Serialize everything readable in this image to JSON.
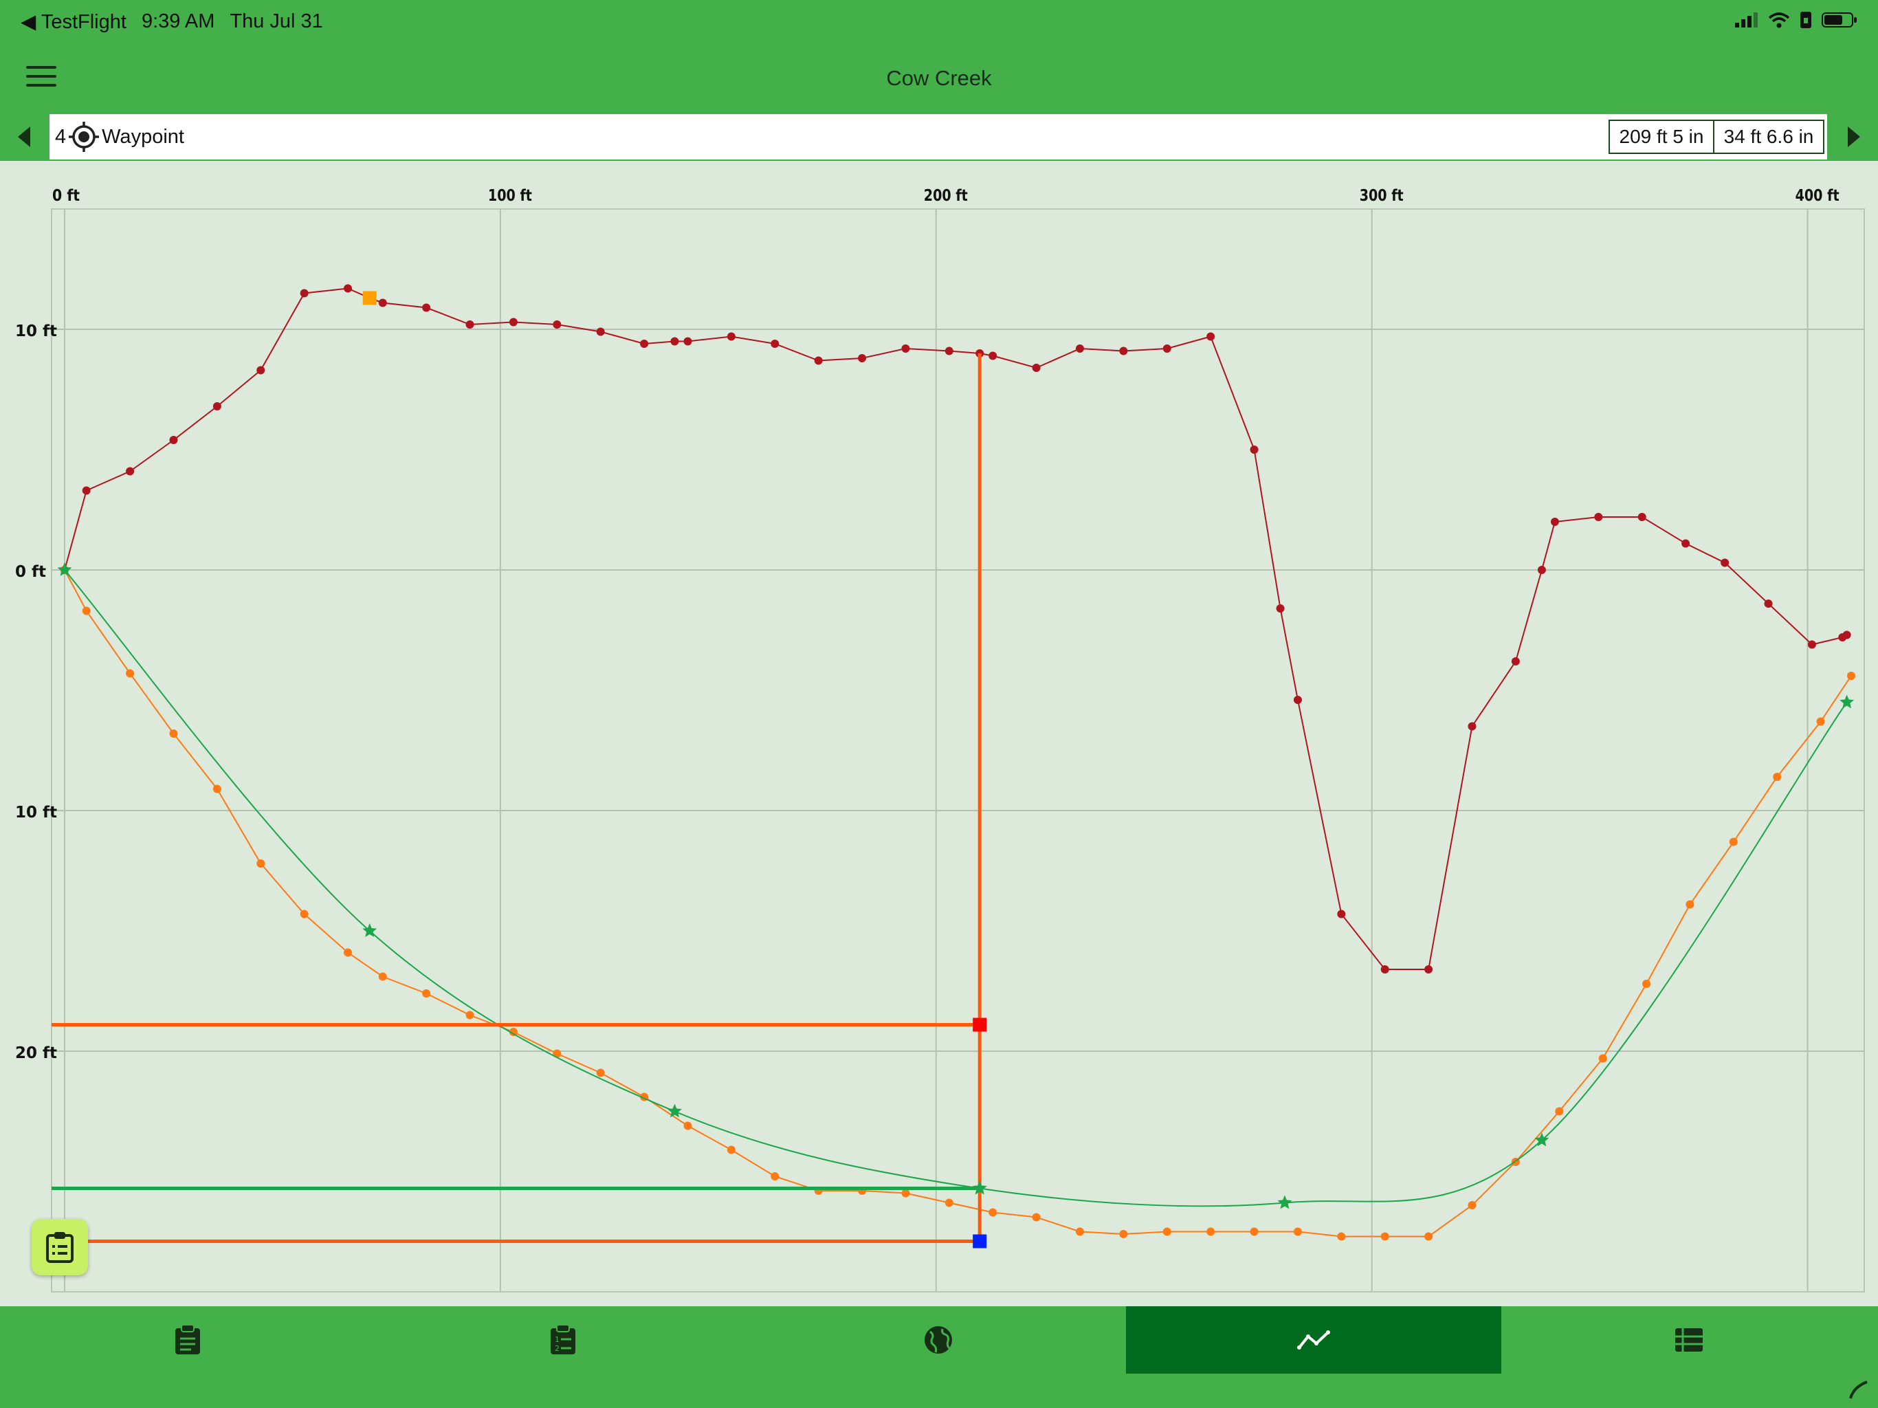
{
  "status_bar": {
    "back_app": "TestFlight",
    "time": "9:39 AM",
    "date": "Thu Jul 31"
  },
  "header": {
    "title": "Cow Creek",
    "menu_icon": "hamburger-menu-icon"
  },
  "waypoint_bar": {
    "number": "4",
    "label": "Waypoint",
    "distance": "209 ft 5 in",
    "depth": "34 ft 6.6 in"
  },
  "tabs": [
    {
      "name": "clipboard",
      "icon": "clipboard-icon",
      "active": false
    },
    {
      "name": "numbered-list",
      "icon": "numbered-clipboard-icon",
      "active": false
    },
    {
      "name": "map",
      "icon": "globe-icon",
      "active": false
    },
    {
      "name": "profile",
      "icon": "line-chart-icon",
      "active": true
    },
    {
      "name": "table",
      "icon": "table-list-icon",
      "active": false
    }
  ],
  "colors": {
    "green": "#43b04a",
    "active_tab": "#006b1e",
    "plot_bg": "#dde9da",
    "ground": "#b0151f",
    "water": "#ff7a14",
    "fit": "#1aa64a",
    "cursor": "#ff5a0a"
  },
  "chart_data": {
    "type": "line",
    "x_axis": {
      "ticks": [
        "0 ft",
        "100 ft",
        "200 ft",
        "300 ft",
        "400 ft"
      ],
      "min": -3,
      "max": 413
    },
    "y_axis": {
      "ticks": [
        "10 ft",
        "0 ft",
        "10 ft",
        "20 ft"
      ],
      "tick_values": [
        10,
        0,
        -10,
        -20
      ],
      "min": -30,
      "max": 15
    },
    "series": [
      {
        "points": [
          [
            0,
            0
          ],
          [
            5,
            3.3
          ],
          [
            15,
            4.1
          ],
          [
            25,
            5.4
          ],
          [
            35,
            6.8
          ],
          [
            45,
            8.3
          ],
          [
            55,
            11.5
          ],
          [
            65,
            11.7
          ],
          [
            70,
            11.3
          ],
          [
            73,
            11.1
          ],
          [
            83,
            10.9
          ],
          [
            93,
            10.2
          ],
          [
            103,
            10.3
          ],
          [
            113,
            10.2
          ],
          [
            123,
            9.9
          ],
          [
            133,
            9.4
          ],
          [
            140,
            9.5
          ],
          [
            143,
            9.5
          ],
          [
            153,
            9.7
          ],
          [
            163,
            9.4
          ],
          [
            173,
            8.7
          ],
          [
            183,
            8.8
          ],
          [
            193,
            9.2
          ],
          [
            203,
            9.1
          ],
          [
            210,
            9.0
          ],
          [
            213,
            8.9
          ],
          [
            223,
            8.4
          ],
          [
            233,
            9.2
          ],
          [
            243,
            9.1
          ],
          [
            253,
            9.2
          ],
          [
            263,
            9.7
          ],
          [
            273,
            5.0
          ],
          [
            279,
            -1.6
          ],
          [
            283,
            -5.4
          ],
          [
            293,
            -14.3
          ],
          [
            303,
            -16.6
          ],
          [
            313,
            -16.6
          ],
          [
            323,
            -6.5
          ],
          [
            333,
            -3.8
          ],
          [
            339,
            0
          ],
          [
            342,
            2.0
          ],
          [
            352,
            2.2
          ],
          [
            362,
            2.2
          ],
          [
            372,
            1.1
          ],
          [
            381,
            0.3
          ],
          [
            391,
            -1.4
          ],
          [
            401,
            -3.1
          ],
          [
            408,
            -2.8
          ],
          [
            409,
            -2.7
          ]
        ]
      },
      {
        "points": [
          [
            0,
            0
          ],
          [
            5,
            -1.7
          ],
          [
            15,
            -4.3
          ],
          [
            25,
            -6.8
          ],
          [
            35,
            -9.1
          ],
          [
            45,
            -12.2
          ],
          [
            55,
            -14.3
          ],
          [
            65,
            -15.9
          ],
          [
            73,
            -16.9
          ],
          [
            83,
            -17.6
          ],
          [
            93,
            -18.5
          ],
          [
            103,
            -19.2
          ],
          [
            113,
            -20.1
          ],
          [
            123,
            -20.9
          ],
          [
            133,
            -21.9
          ],
          [
            143,
            -23.1
          ],
          [
            153,
            -24.1
          ],
          [
            163,
            -25.2
          ],
          [
            173,
            -25.8
          ],
          [
            183,
            -25.8
          ],
          [
            193,
            -25.9
          ],
          [
            203,
            -26.3
          ],
          [
            213,
            -26.7
          ],
          [
            223,
            -26.9
          ],
          [
            233,
            -27.5
          ],
          [
            243,
            -27.6
          ],
          [
            253,
            -27.5
          ],
          [
            263,
            -27.5
          ],
          [
            273,
            -27.5
          ],
          [
            283,
            -27.5
          ],
          [
            293,
            -27.7
          ],
          [
            303,
            -27.7
          ],
          [
            313,
            -27.7
          ],
          [
            323,
            -26.4
          ],
          [
            333,
            -24.6
          ],
          [
            343,
            -22.5
          ],
          [
            353,
            -20.3
          ],
          [
            363,
            -17.2
          ],
          [
            373,
            -13.9
          ],
          [
            383,
            -11.3
          ],
          [
            393,
            -8.6
          ],
          [
            403,
            -6.3
          ],
          [
            410,
            -4.4
          ]
        ]
      },
      {
        "points": [
          [
            0,
            0
          ],
          [
            70,
            -15
          ],
          [
            140,
            -22.5
          ],
          [
            210,
            -25.7
          ],
          [
            280,
            -26.3
          ],
          [
            339,
            -23.7
          ],
          [
            409,
            -5.5
          ]
        ]
      }
    ],
    "cursor": {
      "x": 210,
      "ground_y": 9.0,
      "red_y": -18.9,
      "green_y": -25.7,
      "blue_y": -27.9
    },
    "marker_orange": {
      "x": 70,
      "y": 11.3
    }
  }
}
